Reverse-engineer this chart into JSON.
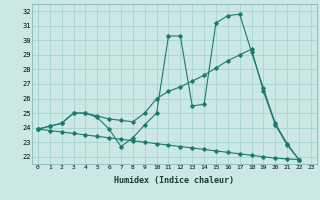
{
  "xlabel": "Humidex (Indice chaleur)",
  "bg_color": "#cce8e5",
  "grid_color": "#a8d4d0",
  "line_color": "#1a7a6e",
  "xlim": [
    -0.5,
    23.5
  ],
  "ylim": [
    21.5,
    32.5
  ],
  "xticks": [
    0,
    1,
    2,
    3,
    4,
    5,
    6,
    7,
    8,
    9,
    10,
    11,
    12,
    13,
    14,
    15,
    16,
    17,
    18,
    19,
    20,
    21,
    22,
    23
  ],
  "yticks": [
    22,
    23,
    24,
    25,
    26,
    27,
    28,
    29,
    30,
    31,
    32
  ],
  "series": [
    {
      "x": [
        0,
        1,
        2,
        3,
        4,
        5,
        6,
        7,
        8,
        9,
        10,
        11,
        12,
        13,
        14,
        15,
        16,
        17,
        18,
        19,
        20,
        21,
        22
      ],
      "y": [
        23.9,
        24.1,
        24.3,
        25.0,
        25.0,
        24.7,
        23.9,
        22.7,
        23.3,
        24.2,
        25.0,
        30.3,
        30.3,
        25.5,
        25.6,
        31.2,
        31.7,
        31.8,
        29.2,
        26.7,
        24.3,
        22.9,
        21.8
      ]
    },
    {
      "x": [
        0,
        1,
        2,
        3,
        4,
        5,
        6,
        7,
        8,
        9,
        10,
        11,
        12,
        13,
        14,
        15,
        16,
        17,
        18,
        19,
        20,
        21,
        22
      ],
      "y": [
        23.9,
        24.1,
        24.3,
        25.0,
        25.0,
        24.8,
        24.6,
        24.5,
        24.4,
        25.0,
        26.0,
        26.5,
        26.8,
        27.2,
        27.6,
        28.1,
        28.6,
        29.0,
        29.4,
        26.5,
        24.2,
        22.8,
        21.8
      ]
    },
    {
      "x": [
        0,
        1,
        2,
        3,
        4,
        5,
        6,
        7,
        8,
        9,
        10,
        11,
        12,
        13,
        14,
        15,
        16,
        17,
        18,
        19,
        20,
        21,
        22
      ],
      "y": [
        23.9,
        23.8,
        23.7,
        23.6,
        23.5,
        23.4,
        23.3,
        23.2,
        23.1,
        23.0,
        22.9,
        22.8,
        22.7,
        22.6,
        22.5,
        22.4,
        22.3,
        22.2,
        22.1,
        22.0,
        21.9,
        21.85,
        21.8
      ]
    }
  ],
  "figsize": [
    3.2,
    2.0
  ],
  "dpi": 100
}
